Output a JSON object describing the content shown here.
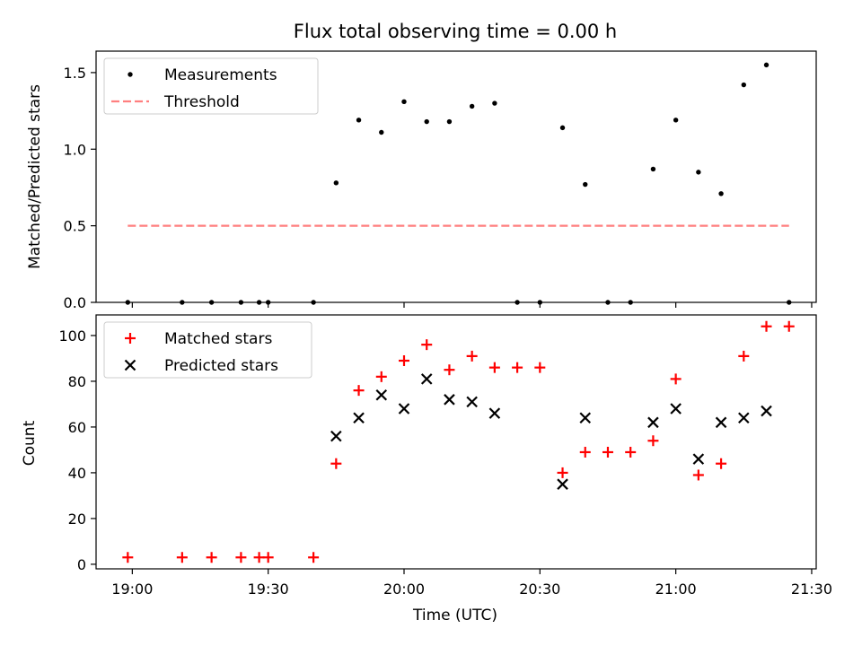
{
  "chart_data": [
    {
      "type": "scatter",
      "title": "Flux total observing time = 0.00 h",
      "xlabel": "",
      "ylabel": "Matched/Predicted stars",
      "xlim": [
        1132,
        1291
      ],
      "ylim": [
        0,
        1.64
      ],
      "yticks": [
        0.0,
        0.5,
        1.0,
        1.5
      ],
      "ytick_labels": [
        "0.0",
        "0.5",
        "1.0",
        "1.5"
      ],
      "legend_position": "top-left",
      "series": [
        {
          "name": "Measurements",
          "marker": "dot",
          "color": "#000000",
          "points": [
            [
              1139,
              0.0
            ],
            [
              1151,
              0.0
            ],
            [
              1157.5,
              0.0
            ],
            [
              1164,
              0.0
            ],
            [
              1168,
              0.0
            ],
            [
              1170,
              0.0
            ],
            [
              1180,
              0.0
            ],
            [
              1185,
              0.78
            ],
            [
              1190,
              1.19
            ],
            [
              1195,
              1.11
            ],
            [
              1200,
              1.31
            ],
            [
              1205,
              1.18
            ],
            [
              1210,
              1.18
            ],
            [
              1215,
              1.28
            ],
            [
              1220,
              1.3
            ],
            [
              1225,
              0.0
            ],
            [
              1230,
              0.0
            ],
            [
              1235,
              1.14
            ],
            [
              1240,
              0.77
            ],
            [
              1245,
              0.0
            ],
            [
              1250,
              0.0
            ],
            [
              1255,
              0.87
            ],
            [
              1260,
              1.19
            ],
            [
              1265,
              0.85
            ],
            [
              1270,
              0.71
            ],
            [
              1275,
              1.42
            ],
            [
              1280,
              1.55
            ],
            [
              1285,
              0.0
            ]
          ]
        },
        {
          "name": "Threshold",
          "marker": "dashed-line",
          "color": "#ff7f7f",
          "points": [
            [
              1139,
              0.5
            ],
            [
              1285,
              0.5
            ]
          ]
        }
      ]
    },
    {
      "type": "scatter",
      "title": "",
      "xlabel": "Time (UTC)",
      "ylabel": "Count",
      "xlim": [
        1132,
        1291
      ],
      "ylim": [
        -2,
        109
      ],
      "yticks": [
        0,
        20,
        40,
        60,
        80,
        100
      ],
      "ytick_labels": [
        "0",
        "20",
        "40",
        "60",
        "80",
        "100"
      ],
      "xticks": [
        1140,
        1170,
        1200,
        1230,
        1260,
        1290
      ],
      "xtick_labels": [
        "19:00",
        "19:30",
        "20:00",
        "20:30",
        "21:00",
        "21:30"
      ],
      "legend_position": "top-left",
      "series": [
        {
          "name": "Matched stars",
          "marker": "plus",
          "color": "#ff0000",
          "points": [
            [
              1139,
              3
            ],
            [
              1151,
              3
            ],
            [
              1157.5,
              3
            ],
            [
              1164,
              3
            ],
            [
              1168,
              3
            ],
            [
              1170,
              3
            ],
            [
              1180,
              3
            ],
            [
              1185,
              44
            ],
            [
              1190,
              76
            ],
            [
              1195,
              82
            ],
            [
              1200,
              89
            ],
            [
              1205,
              96
            ],
            [
              1210,
              85
            ],
            [
              1215,
              91
            ],
            [
              1220,
              86
            ],
            [
              1225,
              86
            ],
            [
              1230,
              86
            ],
            [
              1235,
              40
            ],
            [
              1240,
              49
            ],
            [
              1245,
              49
            ],
            [
              1250,
              49
            ],
            [
              1255,
              54
            ],
            [
              1260,
              81
            ],
            [
              1265,
              39
            ],
            [
              1270,
              44
            ],
            [
              1275,
              91
            ],
            [
              1280,
              104
            ],
            [
              1285,
              104
            ]
          ]
        },
        {
          "name": "Predicted stars",
          "marker": "x",
          "color": "#000000",
          "points": [
            [
              1185,
              56
            ],
            [
              1190,
              64
            ],
            [
              1195,
              74
            ],
            [
              1200,
              68
            ],
            [
              1205,
              81
            ],
            [
              1210,
              72
            ],
            [
              1215,
              71
            ],
            [
              1220,
              66
            ],
            [
              1235,
              35
            ],
            [
              1240,
              64
            ],
            [
              1255,
              62
            ],
            [
              1260,
              68
            ],
            [
              1265,
              46
            ],
            [
              1270,
              62
            ],
            [
              1275,
              64
            ],
            [
              1280,
              67
            ]
          ]
        }
      ]
    }
  ]
}
